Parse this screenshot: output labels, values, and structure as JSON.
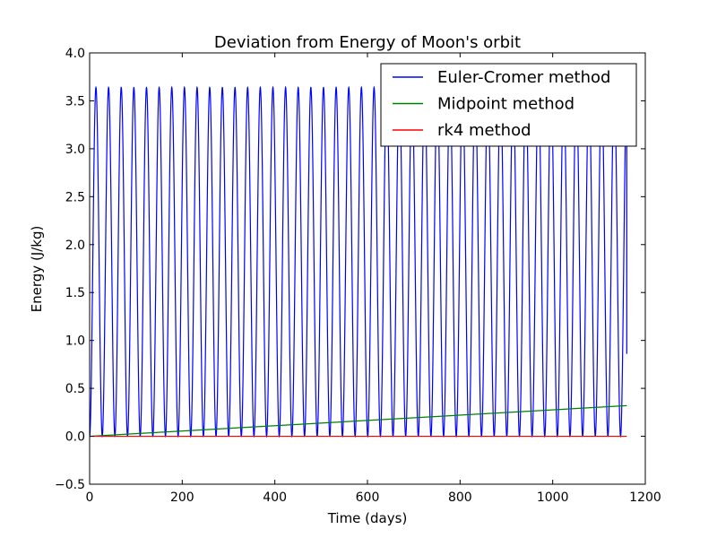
{
  "chart_data": {
    "type": "line",
    "title": "Deviation from Energy of Moon's orbit",
    "xlabel": "Time (days)",
    "ylabel": "Energy (J/kg)",
    "xlim": [
      0,
      1200
    ],
    "ylim": [
      -0.5,
      4.0
    ],
    "xticks": [
      0,
      200,
      400,
      600,
      800,
      1000,
      1200
    ],
    "yticks": [
      -0.5,
      0.0,
      0.5,
      1.0,
      1.5,
      2.0,
      2.5,
      3.0,
      3.5,
      4.0
    ],
    "xtick_labels": [
      "0",
      "200",
      "400",
      "600",
      "800",
      "1000",
      "1200"
    ],
    "ytick_labels": [
      "−0.5",
      "0.0",
      "0.5",
      "1.0",
      "1.5",
      "2.0",
      "2.5",
      "3.0",
      "3.5",
      "4.0"
    ],
    "grid": false,
    "legend_position": "top-right",
    "series": [
      {
        "name": "Euler-Cromer method",
        "color": "#0000ff",
        "model": "oscillation",
        "period_days": 27.3,
        "amplitude": 3.64,
        "x_end": 1160,
        "y_end": 0.86
      },
      {
        "name": "Midpoint method",
        "color": "#008000",
        "x": [
          0,
          1160
        ],
        "y": [
          0.0,
          0.32
        ]
      },
      {
        "name": "rk4 method",
        "color": "#ff0000",
        "x": [
          0,
          1160
        ],
        "y": [
          0.0,
          0.0
        ]
      }
    ]
  }
}
